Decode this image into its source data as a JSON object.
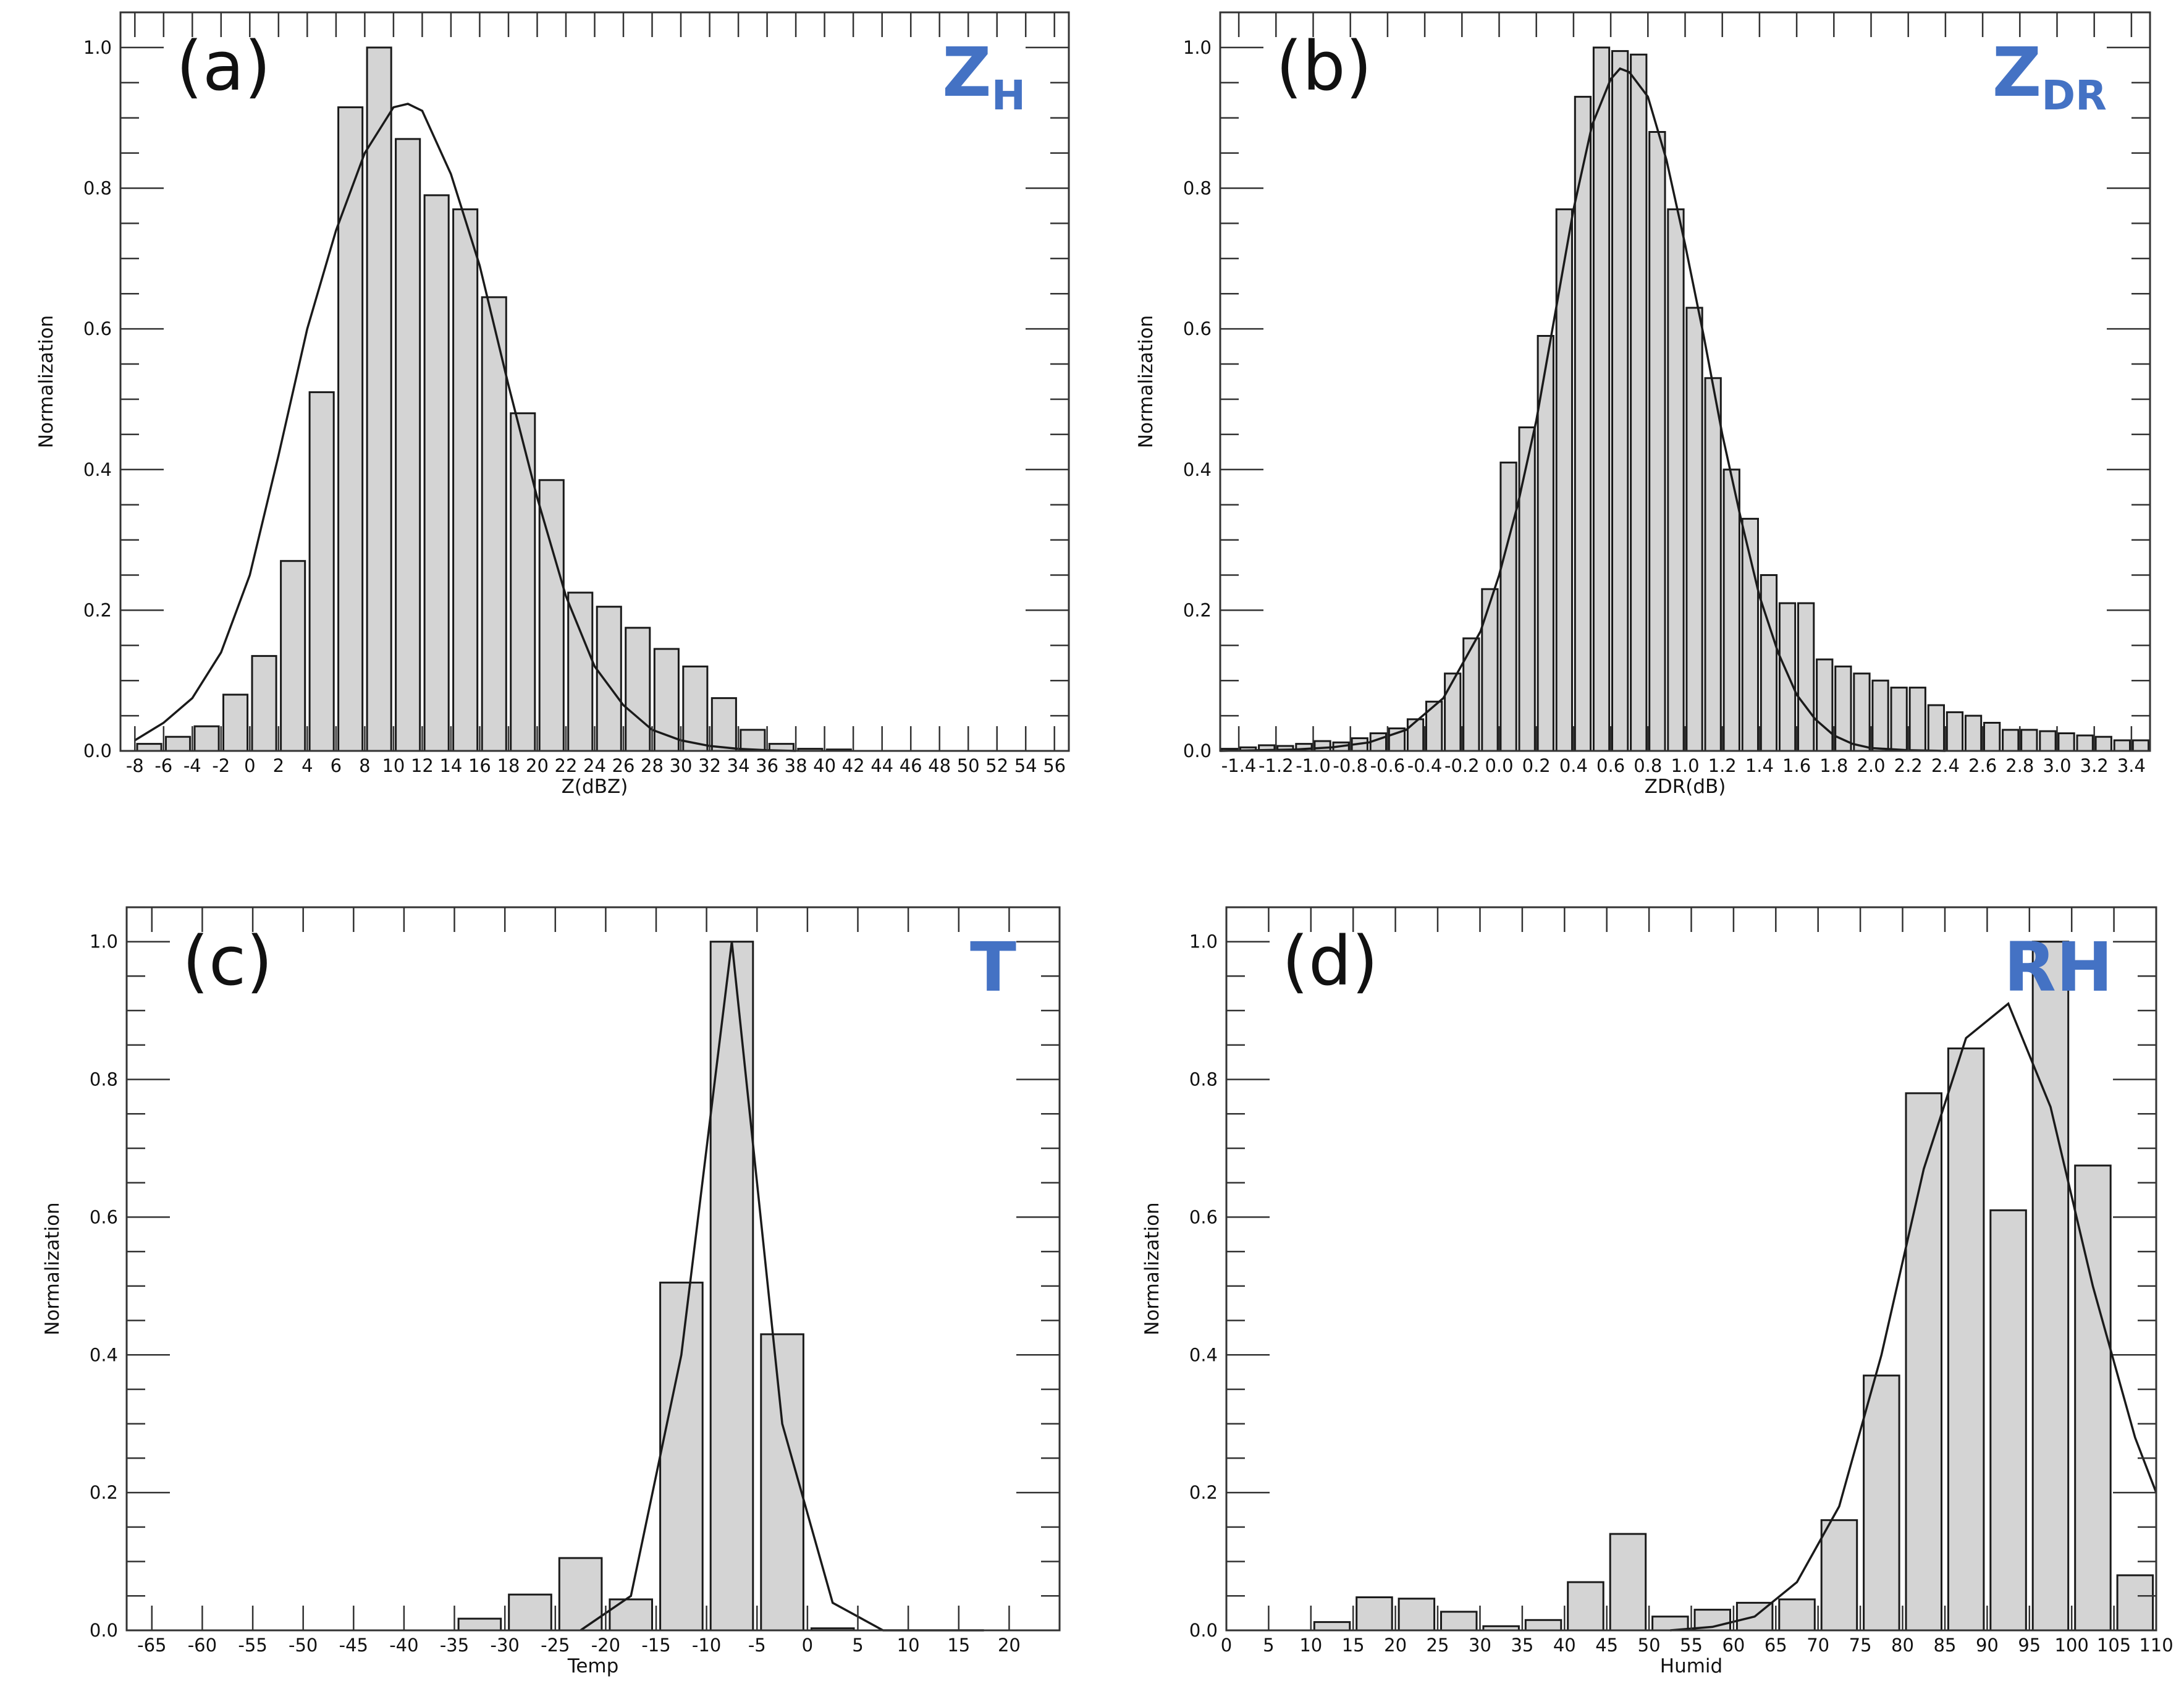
{
  "colors": {
    "bar_fill": "#d4d4d4",
    "bar_stroke": "#1a1a1a",
    "curve": "#1a1a1a",
    "var_label": "#4472c4",
    "axis": "#333333"
  },
  "chart_data": [
    {
      "type": "bar",
      "panel_label": "(a)",
      "var_label": {
        "main": "Z",
        "sub": "H"
      },
      "xlabel": "Z(dBZ)",
      "ylabel": "Normalization",
      "xlim": [
        -9,
        57
      ],
      "ylim": [
        0,
        1.05
      ],
      "xticks": [
        -8,
        -6,
        -4,
        -2,
        0,
        2,
        4,
        6,
        8,
        10,
        12,
        14,
        16,
        18,
        20,
        22,
        24,
        26,
        28,
        30,
        32,
        34,
        36,
        38,
        40,
        42,
        44,
        46,
        48,
        50,
        52,
        54,
        56
      ],
      "xtick_labels": [
        "-8",
        "-6",
        "-4",
        "-2",
        "0",
        "2",
        "4",
        "6",
        "8",
        "10",
        "12",
        "14",
        "16",
        "18",
        "20",
        "22",
        "24",
        "26",
        "28",
        "30",
        "32",
        "34",
        "36",
        "38",
        "40",
        "42",
        "44",
        "46",
        "48",
        "50",
        "52",
        "54",
        "56"
      ],
      "yticks": [
        0,
        0.2,
        0.4,
        0.6,
        0.8,
        1.0
      ],
      "ytick_labels": [
        "0.0",
        "0.2",
        "0.4",
        "0.6",
        "0.8",
        "1.0"
      ],
      "bin_width": 2,
      "x": [
        -7,
        -5,
        -3,
        -1,
        1,
        3,
        5,
        7,
        9,
        11,
        13,
        15,
        17,
        19,
        21,
        23,
        25,
        27,
        29,
        31,
        33,
        35,
        37,
        39,
        41
      ],
      "values": [
        0.01,
        0.02,
        0.035,
        0.08,
        0.135,
        0.27,
        0.51,
        0.915,
        1.0,
        0.87,
        0.79,
        0.77,
        0.645,
        0.48,
        0.385,
        0.225,
        0.205,
        0.175,
        0.145,
        0.12,
        0.075,
        0.03,
        0.01,
        0.003,
        0.002
      ],
      "curve": {
        "x": [
          -8,
          -6,
          -4,
          -2,
          0,
          2,
          4,
          6,
          8,
          10,
          11,
          12,
          14,
          16,
          18,
          20,
          22,
          24,
          26,
          28,
          30,
          32,
          34,
          36,
          38
        ],
        "y": [
          0.015,
          0.04,
          0.075,
          0.14,
          0.25,
          0.42,
          0.6,
          0.74,
          0.85,
          0.915,
          0.92,
          0.91,
          0.82,
          0.69,
          0.52,
          0.36,
          0.22,
          0.12,
          0.065,
          0.03,
          0.015,
          0.007,
          0.003,
          0.001,
          0.0
        ]
      }
    },
    {
      "type": "bar",
      "panel_label": "(b)",
      "var_label": {
        "main": "Z",
        "sub": "DR"
      },
      "xlabel": "ZDR(dB)",
      "ylabel": "Normalization",
      "xlim": [
        -1.5,
        3.5
      ],
      "ylim": [
        0,
        1.05
      ],
      "xticks": [
        -1.4,
        -1.2,
        -1.0,
        -0.8,
        -0.6,
        -0.4,
        -0.2,
        0.0,
        0.2,
        0.4,
        0.6,
        0.8,
        1.0,
        1.2,
        1.4,
        1.6,
        1.8,
        2.0,
        2.2,
        2.4,
        2.6,
        2.8,
        3.0,
        3.2,
        3.4
      ],
      "xtick_labels": [
        "-1.4",
        "-1.2",
        "-1.0",
        "-0.8",
        "-0.6",
        "-0.4",
        "-0.2",
        "0.0",
        "0.2",
        "0.4",
        "0.6",
        "0.8",
        "1.0",
        "1.2",
        "1.4",
        "1.6",
        "1.8",
        "2.0",
        "2.2",
        "2.4",
        "2.6",
        "2.8",
        "3.0",
        "3.2",
        "3.4"
      ],
      "yticks": [
        0,
        0.2,
        0.4,
        0.6,
        0.8,
        1.0
      ],
      "ytick_labels": [
        "0.0",
        "0.2",
        "0.4",
        "0.6",
        "0.8",
        "1.0"
      ],
      "bin_width": 0.1,
      "x": [
        -1.45,
        -1.35,
        -1.25,
        -1.15,
        -1.05,
        -0.95,
        -0.85,
        -0.75,
        -0.65,
        -0.55,
        -0.45,
        -0.35,
        -0.25,
        -0.15,
        -0.05,
        0.05,
        0.15,
        0.25,
        0.35,
        0.45,
        0.55,
        0.65,
        0.75,
        0.85,
        0.95,
        1.05,
        1.15,
        1.25,
        1.35,
        1.45,
        1.55,
        1.65,
        1.75,
        1.85,
        1.95,
        2.05,
        2.15,
        2.25,
        2.35,
        2.45,
        2.55,
        2.65,
        2.75,
        2.85,
        2.95,
        3.05,
        3.15,
        3.25,
        3.35,
        3.45
      ],
      "values": [
        0.003,
        0.005,
        0.008,
        0.007,
        0.01,
        0.014,
        0.012,
        0.018,
        0.025,
        0.032,
        0.045,
        0.07,
        0.11,
        0.16,
        0.23,
        0.41,
        0.46,
        0.59,
        0.77,
        0.93,
        1.0,
        0.995,
        0.99,
        0.88,
        0.77,
        0.63,
        0.53,
        0.4,
        0.33,
        0.25,
        0.21,
        0.21,
        0.13,
        0.12,
        0.11,
        0.1,
        0.09,
        0.09,
        0.065,
        0.055,
        0.05,
        0.04,
        0.03,
        0.03,
        0.028,
        0.025,
        0.022,
        0.02,
        0.015,
        0.015
      ],
      "curve": {
        "x": [
          -1.5,
          -1.3,
          -1.1,
          -0.9,
          -0.7,
          -0.5,
          -0.3,
          -0.1,
          0.0,
          0.1,
          0.2,
          0.3,
          0.4,
          0.5,
          0.6,
          0.65,
          0.7,
          0.8,
          0.9,
          1.0,
          1.1,
          1.2,
          1.3,
          1.4,
          1.5,
          1.6,
          1.7,
          1.8,
          1.9,
          2.0,
          2.2,
          2.4
        ],
        "y": [
          0.0,
          0.001,
          0.002,
          0.005,
          0.012,
          0.03,
          0.075,
          0.17,
          0.25,
          0.35,
          0.47,
          0.62,
          0.77,
          0.89,
          0.955,
          0.97,
          0.965,
          0.93,
          0.84,
          0.72,
          0.59,
          0.45,
          0.33,
          0.22,
          0.14,
          0.08,
          0.045,
          0.022,
          0.01,
          0.004,
          0.001,
          0.0
        ]
      }
    },
    {
      "type": "bar",
      "panel_label": "(c)",
      "var_label": {
        "main": "T",
        "sub": ""
      },
      "xlabel": "Temp",
      "ylabel": "Normalization",
      "xlim": [
        -67.5,
        25
      ],
      "ylim": [
        0,
        1.05
      ],
      "xticks": [
        -65,
        -60,
        -55,
        -50,
        -45,
        -40,
        -35,
        -30,
        -25,
        -20,
        -15,
        -10,
        -5,
        0,
        5,
        10,
        15,
        20
      ],
      "xtick_labels": [
        "-65",
        "-60",
        "-55",
        "-50",
        "-45",
        "-40",
        "-35",
        "-30",
        "-25",
        "-20",
        "-15",
        "-10",
        "-5",
        "0",
        "5",
        "10",
        "15",
        "20"
      ],
      "yticks": [
        0,
        0.2,
        0.4,
        0.6,
        0.8,
        1.0
      ],
      "ytick_labels": [
        "0.0",
        "0.2",
        "0.4",
        "0.6",
        "0.8",
        "1.0"
      ],
      "bin_width": 5,
      "x": [
        -32.5,
        -27.5,
        -22.5,
        -17.5,
        -12.5,
        -7.5,
        -2.5,
        2.5
      ],
      "values": [
        0.017,
        0.052,
        0.105,
        0.045,
        0.505,
        1.0,
        0.43,
        0.003
      ],
      "curve": {
        "x": [
          -22.5,
          -17.5,
          -12.5,
          -7.5,
          -2.5,
          2.5,
          7.5,
          12.5,
          17.5
        ],
        "y": [
          0.0,
          0.05,
          0.4,
          1.0,
          0.3,
          0.04,
          0.0,
          0.0,
          0.0
        ]
      }
    },
    {
      "type": "bar",
      "panel_label": "(d)",
      "var_label": {
        "main": "RH",
        "sub": ""
      },
      "xlabel": "Humid",
      "ylabel": "Normalization",
      "xlim": [
        0,
        110
      ],
      "ylim": [
        0,
        1.05
      ],
      "xticks": [
        0,
        5,
        10,
        15,
        20,
        25,
        30,
        35,
        40,
        45,
        50,
        55,
        60,
        65,
        70,
        75,
        80,
        85,
        90,
        95,
        100,
        105,
        110
      ],
      "xtick_labels": [
        "0",
        "5",
        "10",
        "15",
        "20",
        "25",
        "30",
        "35",
        "40",
        "45",
        "50",
        "55",
        "60",
        "65",
        "70",
        "75",
        "80",
        "85",
        "90",
        "95",
        "100",
        "105",
        "110"
      ],
      "yticks": [
        0,
        0.2,
        0.4,
        0.6,
        0.8,
        1.0
      ],
      "ytick_labels": [
        "0.0",
        "0.2",
        "0.4",
        "0.6",
        "0.8",
        "1.0"
      ],
      "bin_width": 5,
      "x": [
        12.5,
        17.5,
        22.5,
        27.5,
        32.5,
        37.5,
        42.5,
        47.5,
        52.5,
        57.5,
        62.5,
        67.5,
        72.5,
        77.5,
        82.5,
        87.5,
        92.5,
        97.5,
        102.5,
        107.5
      ],
      "values": [
        0.012,
        0.048,
        0.046,
        0.027,
        0.006,
        0.015,
        0.07,
        0.14,
        0.02,
        0.03,
        0.04,
        0.045,
        0.16,
        0.37,
        0.78,
        0.845,
        0.61,
        1.0,
        0.675,
        0.08
      ],
      "curve": {
        "x": [
          52.5,
          57.5,
          62.5,
          67.5,
          72.5,
          77.5,
          82.5,
          87.5,
          92.5,
          97.5,
          102.5,
          107.5,
          110
        ],
        "y": [
          0.0,
          0.005,
          0.02,
          0.07,
          0.18,
          0.4,
          0.67,
          0.86,
          0.91,
          0.76,
          0.5,
          0.28,
          0.2
        ]
      }
    }
  ]
}
